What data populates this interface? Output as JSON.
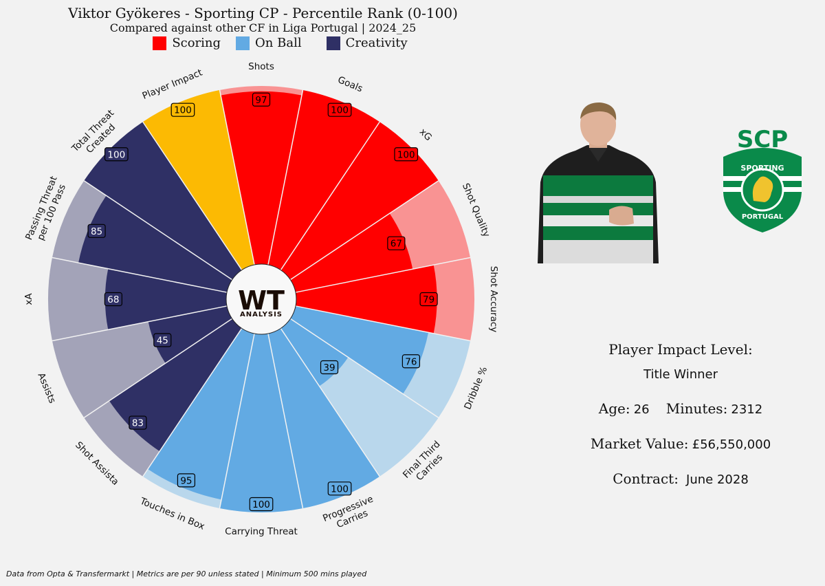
{
  "header": {
    "title": "Viktor Gyökeres - Sporting CP - Percentile Rank (0-100)",
    "subtitle": "Compared against other CF in Liga Portugal | 2024_25"
  },
  "legend": [
    {
      "label": "Scoring",
      "color": "#ff0000"
    },
    {
      "label": "On Ball",
      "color": "#62aae3"
    },
    {
      "label": "Creativity",
      "color": "#2f3065"
    }
  ],
  "center_logo": {
    "main": "WT",
    "sub": "ANALYSIS"
  },
  "chart_data": {
    "type": "polar-bar",
    "range": [
      0,
      100
    ],
    "segments": [
      {
        "label": "Shots",
        "value": 97,
        "group": "Scoring"
      },
      {
        "label": "Goals",
        "value": 100,
        "group": "Scoring"
      },
      {
        "label": "xG",
        "value": 100,
        "group": "Scoring"
      },
      {
        "label": "Shot Quality",
        "value": 67,
        "group": "Scoring"
      },
      {
        "label": "Shot Accuracy",
        "value": 79,
        "group": "Scoring"
      },
      {
        "label": "Dribble %",
        "value": 76,
        "group": "On Ball"
      },
      {
        "label": "Final Third\nCarries",
        "value": 39,
        "group": "On Ball"
      },
      {
        "label": "Progressive\nCarries",
        "value": 100,
        "group": "On Ball"
      },
      {
        "label": "Carrying Threat",
        "value": 100,
        "group": "On Ball"
      },
      {
        "label": "Touches in Box",
        "value": 95,
        "group": "On Ball"
      },
      {
        "label": "Shot Assista",
        "value": 83,
        "group": "Creativity"
      },
      {
        "label": "Assists",
        "value": 45,
        "group": "Creativity"
      },
      {
        "label": "xA",
        "value": 68,
        "group": "Creativity"
      },
      {
        "label": "Passing Threat\nper 100 Pass",
        "value": 85,
        "group": "Creativity"
      },
      {
        "label": "Total Threat\nCreated",
        "value": 100,
        "group": "Creativity"
      },
      {
        "label": "Player Impact",
        "value": 100,
        "group": "Impact"
      }
    ],
    "colors": {
      "Scoring": {
        "bar": "#ff0000",
        "bg": "#f99393",
        "text": "#000000"
      },
      "On Ball": {
        "bar": "#62aae3",
        "bg": "#b9d7ec",
        "text": "#000000"
      },
      "Creativity": {
        "bar": "#2f3065",
        "bg": "#a3a3b8",
        "text": "#ffffff"
      },
      "Impact": {
        "bar": "#fcba03",
        "bg": "#fcba03",
        "text": "#000000"
      }
    }
  },
  "info": {
    "impact_label": "Player Impact Level:",
    "impact_value": "Title Winner",
    "age_label": "Age:",
    "age_value": "26",
    "minutes_label": "Minutes:",
    "minutes_value": "2312",
    "market_label": "Market Value:",
    "market_value": "£56,550,000",
    "contract_label": "Contract:",
    "contract_value": "June 2028"
  },
  "club_logo": {
    "top": "SCP",
    "ring_top": "SPORTING",
    "ring_bottom": "PORTUGAL"
  },
  "footer": "Data from Opta & Transfermarkt | Metrics are per 90 unless stated | Minimum 500 mins played"
}
